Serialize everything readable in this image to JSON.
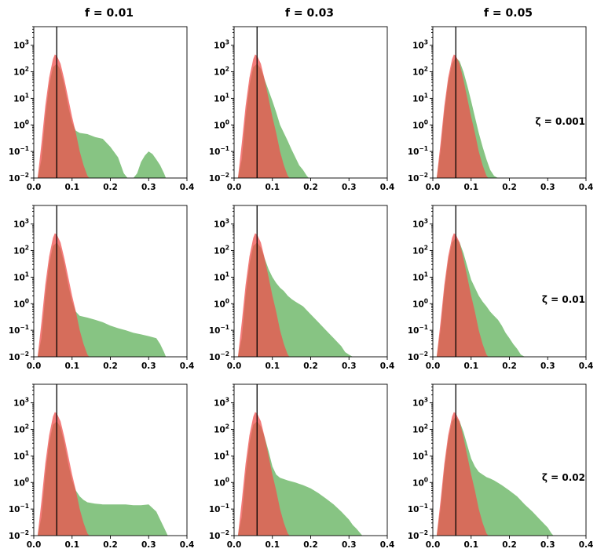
{
  "chart_data": {
    "type": "area",
    "layout": "3x3 grid of panels",
    "column_titles": [
      "f = 0.01",
      "f = 0.03",
      "f = 0.05"
    ],
    "row_labels": [
      "ζ = 0.001",
      "ζ = 0.01",
      "ζ = 0.02"
    ],
    "xlim": [
      0.0,
      0.4
    ],
    "x_ticks": [
      0.0,
      0.1,
      0.2,
      0.3,
      0.4
    ],
    "x_tick_labels": [
      "0.0",
      "0.1",
      "0.2",
      "0.3",
      "0.4"
    ],
    "y_scale": "log",
    "ylim": [
      0.01,
      5000
    ],
    "y_ticks": [
      0.01,
      0.1,
      1,
      10,
      100,
      1000
    ],
    "y_tick_labels": [
      {
        "base": "10",
        "exp": "−2"
      },
      {
        "base": "10",
        "exp": "−1"
      },
      {
        "base": "10",
        "exp": "0"
      },
      {
        "base": "10",
        "exp": "1"
      },
      {
        "base": "10",
        "exp": "2"
      },
      {
        "base": "10",
        "exp": "3"
      }
    ],
    "vertical_line_x": 0.06,
    "colors": {
      "red_fill": "#f0504e",
      "green_fill": "#5fb05a",
      "overlap_fill": "#c0583f"
    },
    "alpha": 0.75,
    "red_distribution": {
      "x": [
        0.01,
        0.02,
        0.03,
        0.04,
        0.05,
        0.055,
        0.06,
        0.07,
        0.08,
        0.09,
        0.1,
        0.11,
        0.12,
        0.13,
        0.14,
        0.145
      ],
      "y": [
        0.01,
        0.2,
        5,
        60,
        300,
        450,
        400,
        200,
        50,
        10,
        2,
        0.5,
        0.1,
        0.03,
        0.012,
        0.01
      ]
    },
    "panels": [
      {
        "row": 0,
        "col": 0,
        "x": [
          0.01,
          0.02,
          0.03,
          0.04,
          0.05,
          0.06,
          0.07,
          0.08,
          0.09,
          0.1,
          0.11,
          0.12,
          0.14,
          0.16,
          0.18,
          0.2,
          0.22,
          0.235,
          0.245,
          0.26,
          0.27,
          0.28,
          0.29,
          0.3,
          0.31,
          0.32,
          0.33,
          0.34,
          0.345
        ],
        "y": [
          0.01,
          0.05,
          2,
          30,
          150,
          200,
          120,
          30,
          5,
          1.2,
          0.6,
          0.5,
          0.45,
          0.35,
          0.3,
          0.15,
          0.06,
          0.015,
          0.01,
          0.01,
          0.015,
          0.04,
          0.07,
          0.1,
          0.08,
          0.05,
          0.03,
          0.015,
          0.01
        ]
      },
      {
        "row": 0,
        "col": 1,
        "x": [
          0.01,
          0.02,
          0.03,
          0.04,
          0.05,
          0.06,
          0.07,
          0.08,
          0.09,
          0.1,
          0.11,
          0.12,
          0.13,
          0.14,
          0.15,
          0.16,
          0.17,
          0.18,
          0.19,
          0.195
        ],
        "y": [
          0.01,
          0.05,
          2,
          30,
          150,
          200,
          130,
          50,
          20,
          8,
          3,
          1,
          0.5,
          0.25,
          0.12,
          0.06,
          0.03,
          0.02,
          0.012,
          0.01
        ]
      },
      {
        "row": 0,
        "col": 2,
        "x": [
          0.01,
          0.02,
          0.03,
          0.04,
          0.05,
          0.06,
          0.07,
          0.08,
          0.09,
          0.1,
          0.11,
          0.12,
          0.13,
          0.14,
          0.15,
          0.16,
          0.17
        ],
        "y": [
          0.01,
          0.1,
          3,
          40,
          200,
          350,
          250,
          100,
          30,
          8,
          2,
          0.5,
          0.15,
          0.05,
          0.02,
          0.012,
          0.01
        ]
      },
      {
        "row": 1,
        "col": 0,
        "x": [
          0.01,
          0.02,
          0.03,
          0.04,
          0.05,
          0.06,
          0.07,
          0.08,
          0.09,
          0.1,
          0.11,
          0.12,
          0.14,
          0.16,
          0.18,
          0.2,
          0.22,
          0.24,
          0.26,
          0.28,
          0.3,
          0.32,
          0.33,
          0.34,
          0.345
        ],
        "y": [
          0.01,
          0.05,
          2,
          30,
          150,
          200,
          120,
          30,
          5,
          1.2,
          0.5,
          0.35,
          0.3,
          0.25,
          0.2,
          0.15,
          0.12,
          0.1,
          0.08,
          0.07,
          0.06,
          0.05,
          0.03,
          0.015,
          0.01
        ]
      },
      {
        "row": 1,
        "col": 1,
        "x": [
          0.01,
          0.02,
          0.03,
          0.04,
          0.05,
          0.06,
          0.07,
          0.08,
          0.09,
          0.1,
          0.11,
          0.12,
          0.13,
          0.14,
          0.15,
          0.16,
          0.18,
          0.2,
          0.22,
          0.24,
          0.26,
          0.28,
          0.29,
          0.3,
          0.31
        ],
        "y": [
          0.01,
          0.05,
          2,
          30,
          150,
          200,
          130,
          50,
          20,
          10,
          6,
          4,
          3,
          2,
          1.5,
          1.2,
          0.8,
          0.4,
          0.2,
          0.1,
          0.05,
          0.025,
          0.015,
          0.012,
          0.01
        ]
      },
      {
        "row": 1,
        "col": 2,
        "x": [
          0.01,
          0.02,
          0.03,
          0.04,
          0.05,
          0.06,
          0.07,
          0.08,
          0.09,
          0.1,
          0.11,
          0.12,
          0.13,
          0.14,
          0.15,
          0.16,
          0.17,
          0.18,
          0.19,
          0.2,
          0.21,
          0.22,
          0.23,
          0.24
        ],
        "y": [
          0.01,
          0.1,
          3,
          40,
          200,
          300,
          200,
          80,
          25,
          8,
          4,
          2,
          1.2,
          0.8,
          0.5,
          0.35,
          0.25,
          0.15,
          0.08,
          0.05,
          0.03,
          0.02,
          0.012,
          0.01
        ]
      },
      {
        "row": 2,
        "col": 0,
        "x": [
          0.01,
          0.02,
          0.03,
          0.04,
          0.05,
          0.06,
          0.07,
          0.08,
          0.09,
          0.1,
          0.11,
          0.12,
          0.13,
          0.14,
          0.16,
          0.18,
          0.2,
          0.22,
          0.24,
          0.26,
          0.28,
          0.3,
          0.32,
          0.33,
          0.34,
          0.35
        ],
        "y": [
          0.01,
          0.05,
          2,
          30,
          150,
          200,
          120,
          30,
          5,
          1.2,
          0.5,
          0.3,
          0.22,
          0.18,
          0.16,
          0.15,
          0.15,
          0.15,
          0.15,
          0.14,
          0.14,
          0.15,
          0.08,
          0.04,
          0.02,
          0.01
        ]
      },
      {
        "row": 2,
        "col": 1,
        "x": [
          0.01,
          0.02,
          0.03,
          0.04,
          0.05,
          0.06,
          0.07,
          0.08,
          0.09,
          0.1,
          0.11,
          0.12,
          0.14,
          0.16,
          0.18,
          0.2,
          0.22,
          0.24,
          0.26,
          0.28,
          0.3,
          0.31,
          0.32,
          0.33,
          0.335
        ],
        "y": [
          0.01,
          0.05,
          2,
          30,
          150,
          200,
          130,
          50,
          15,
          4,
          2,
          1.5,
          1.2,
          1.0,
          0.8,
          0.6,
          0.4,
          0.25,
          0.15,
          0.08,
          0.04,
          0.025,
          0.018,
          0.012,
          0.01
        ]
      },
      {
        "row": 2,
        "col": 2,
        "x": [
          0.01,
          0.02,
          0.03,
          0.04,
          0.05,
          0.06,
          0.07,
          0.08,
          0.09,
          0.1,
          0.11,
          0.12,
          0.13,
          0.14,
          0.15,
          0.16,
          0.18,
          0.2,
          0.22,
          0.24,
          0.26,
          0.28,
          0.3,
          0.31,
          0.315
        ],
        "y": [
          0.01,
          0.1,
          3,
          40,
          200,
          300,
          200,
          80,
          25,
          8,
          4,
          2.5,
          2,
          1.6,
          1.4,
          1.2,
          0.8,
          0.5,
          0.3,
          0.15,
          0.08,
          0.04,
          0.02,
          0.012,
          0.01
        ]
      }
    ]
  }
}
